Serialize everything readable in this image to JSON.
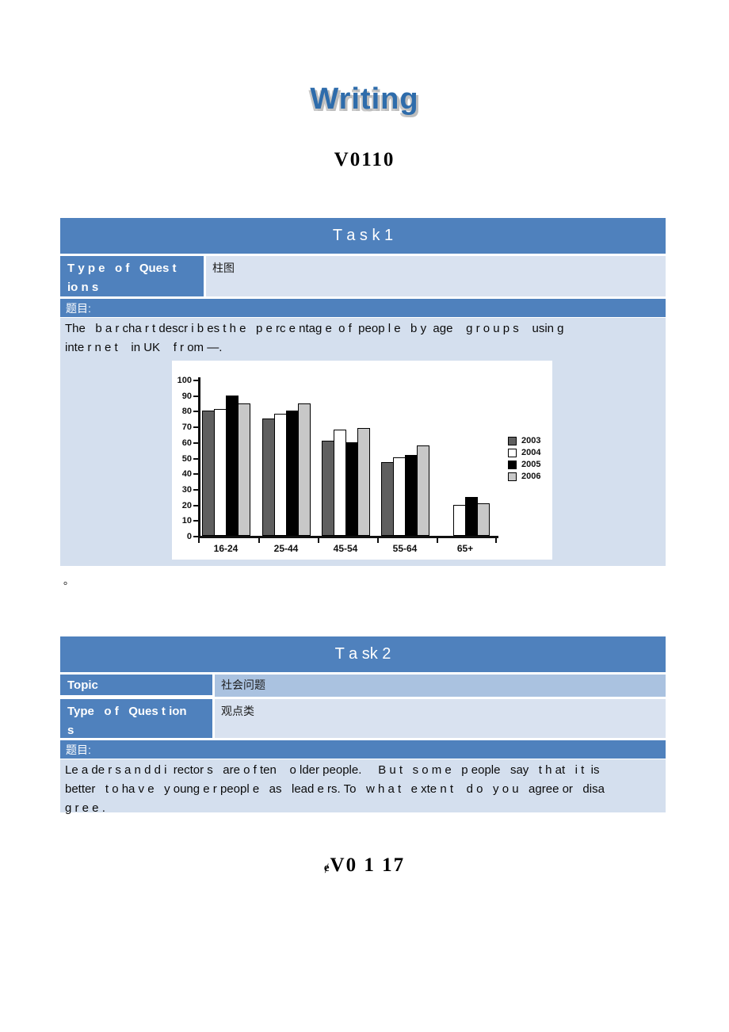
{
  "page": {
    "title": "Writing",
    "doc_code_top": "V0110",
    "doc_code_bottom_prefix": "ɇ",
    "doc_code_bottom": "V0 1 17",
    "stray_period": "。"
  },
  "task1": {
    "header": "T a s k 1",
    "type_label_line1": "T y p e   o f   Ques t",
    "type_label_line2": "io n s",
    "type_value": "柱图",
    "timu_label": "题目:",
    "body_line1": "The   b a r cha r t descr i b es t h e   p e rc e ntag e  o f  peop l e   b y  age    g r o u p s    usin g",
    "body_line2": "inte r n e t    in UK    f r om —."
  },
  "task2": {
    "header": "T a sk 2",
    "topic_label": "Topic",
    "topic_value": "社会问题",
    "type_label_line1": "Type   o f   Ques t ion",
    "type_label_line2": "s",
    "type_value": "观点类",
    "timu_label": "题目:",
    "body_line1": "Le a de r s a n d d i  rector s   are o f ten    o lder people.     B u t   s o m e   p eople   say   t h at   i t  is",
    "body_line2": "better   t o ha v e   y oung e r peopl e   as   lead e rs. To   w h a t   e xte n t    d o   y o u   agree or   disa",
    "body_line3": "g r e e ."
  },
  "chart_data": {
    "type": "bar",
    "title": "",
    "xlabel": "",
    "ylabel": "",
    "categories": [
      "16-24",
      "25-44",
      "45-54",
      "55-64",
      "65+"
    ],
    "series": [
      {
        "name": "2003",
        "color": "#5f5f5f",
        "values": [
          80,
          75,
          61,
          47,
          null
        ]
      },
      {
        "name": "2004",
        "color": "#ffffff",
        "values": [
          81,
          78,
          68,
          50,
          20
        ]
      },
      {
        "name": "2005",
        "color": "#000000",
        "values": [
          90,
          80,
          60,
          52,
          25
        ]
      },
      {
        "name": "2006",
        "color": "#c8c8c8",
        "values": [
          85,
          85,
          69,
          58,
          21
        ]
      }
    ],
    "ylim": [
      0,
      100
    ],
    "ytick_step": 10,
    "grid": false,
    "legend_position": "right"
  },
  "colors": {
    "accent_blue": "#4f81bd",
    "cell_light": "#d9e2f0",
    "cell_medium": "#aac2e0",
    "body_cell": "#d4dfee",
    "title_blue": "#2e6cab",
    "title_shadow": "#bdbdbd",
    "page_background": "#ffffff"
  }
}
